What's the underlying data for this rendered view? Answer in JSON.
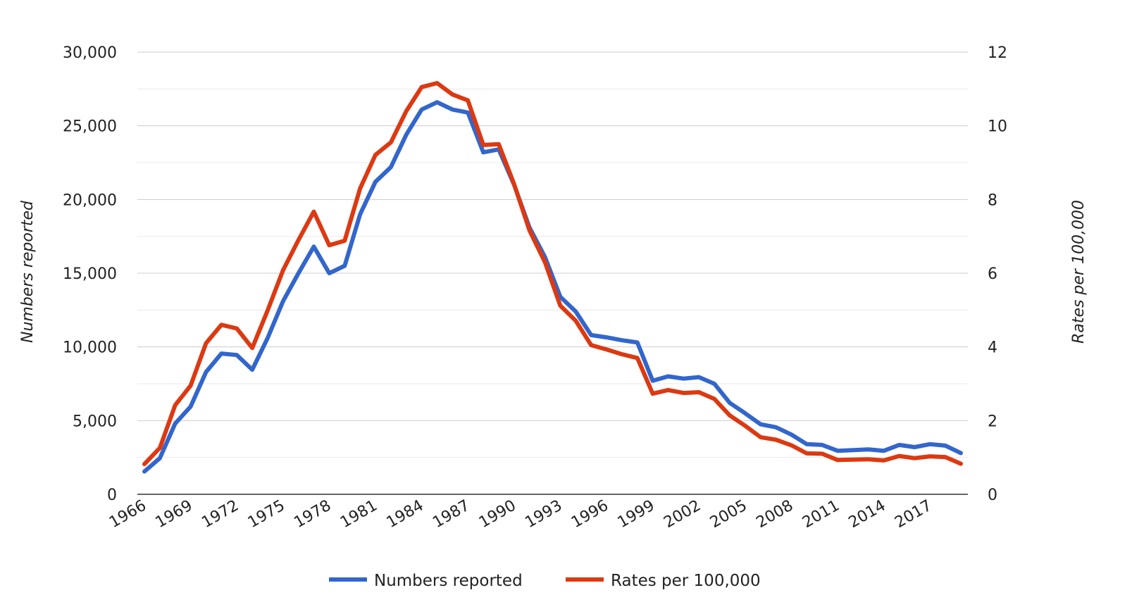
{
  "chart_data": {
    "type": "line",
    "title": "",
    "xlabel": "",
    "ylabel_left": "Numbers reported",
    "ylabel_right": "Rates per 100,000",
    "ylim_left": [
      0,
      30000
    ],
    "ylim_right": [
      0,
      12
    ],
    "yticks_left": [
      "0",
      "5,000",
      "10,000",
      "15,000",
      "20,000",
      "25,000",
      "30,000"
    ],
    "yticks_right": [
      "0",
      "2",
      "4",
      "6",
      "8",
      "10",
      "12"
    ],
    "xticks": [
      "1966",
      "1969",
      "1972",
      "1975",
      "1978",
      "1981",
      "1984",
      "1987",
      "1990",
      "1993",
      "1996",
      "1999",
      "2002",
      "2005",
      "2008",
      "2011",
      "2014",
      "2017"
    ],
    "gridlines": true,
    "legend_position": "bottom",
    "colors": {
      "numbers": "#3366cc",
      "rates": "#dc3912",
      "grid": "#d9d9d9",
      "axis": "#333333"
    },
    "x": [
      1966,
      1967,
      1968,
      1969,
      1970,
      1971,
      1972,
      1973,
      1974,
      1975,
      1976,
      1977,
      1978,
      1979,
      1980,
      1981,
      1982,
      1983,
      1984,
      1985,
      1986,
      1987,
      1988,
      1989,
      1990,
      1991,
      1992,
      1993,
      1994,
      1995,
      1996,
      1997,
      1998,
      1999,
      2000,
      2001,
      2002,
      2003,
      2004,
      2005,
      2006,
      2007,
      2008,
      2009,
      2010,
      2011,
      2012,
      2013,
      2014,
      2015,
      2016,
      2017,
      2018,
      2019
    ],
    "series": [
      {
        "name": "Numbers reported",
        "axis": "left",
        "values": [
          1550,
          2450,
          4800,
          5950,
          8300,
          9550,
          9450,
          8450,
          10600,
          13100,
          15000,
          16800,
          15000,
          15500,
          19000,
          21200,
          22200,
          24400,
          26100,
          26600,
          26100,
          25900,
          23200,
          23400,
          21000,
          18100,
          16100,
          13400,
          12400,
          10800,
          10650,
          10450,
          10300,
          7700,
          8000,
          7850,
          7950,
          7500,
          6200,
          5500,
          4750,
          4550,
          4050,
          3400,
          3350,
          2950,
          3000,
          3050,
          2950,
          3350,
          3200,
          3400,
          3300,
          2800
        ]
      },
      {
        "name": "Rates per 100,000",
        "axis": "right",
        "values": [
          0.82,
          1.26,
          2.42,
          2.95,
          4.1,
          4.6,
          4.5,
          3.97,
          4.99,
          6.08,
          6.9,
          7.67,
          6.76,
          6.88,
          8.3,
          9.21,
          9.55,
          10.4,
          11.05,
          11.16,
          10.85,
          10.69,
          9.48,
          9.5,
          8.42,
          7.16,
          6.3,
          5.12,
          4.71,
          4.05,
          3.93,
          3.8,
          3.7,
          2.73,
          2.83,
          2.75,
          2.77,
          2.59,
          2.14,
          1.86,
          1.55,
          1.48,
          1.33,
          1.11,
          1.1,
          0.93,
          0.94,
          0.95,
          0.92,
          1.04,
          0.98,
          1.03,
          1.01,
          0.83
        ]
      }
    ]
  }
}
